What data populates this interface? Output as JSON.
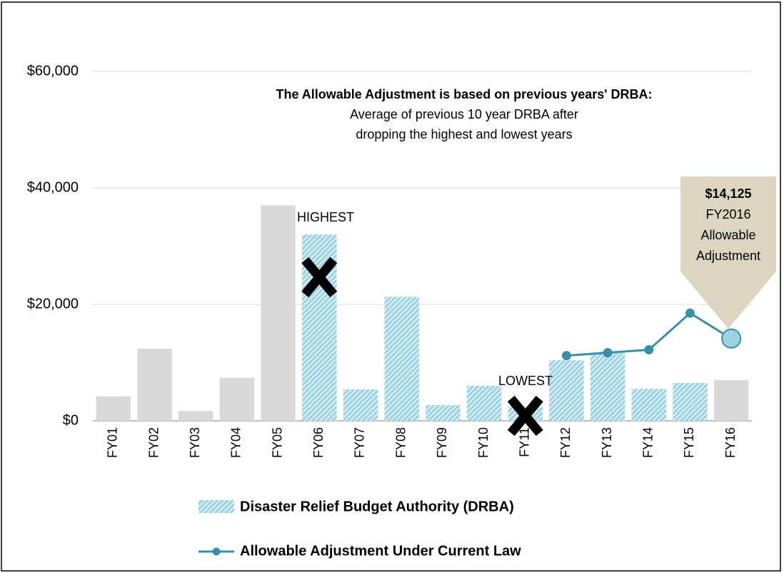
{
  "chart_data": {
    "type": "bar",
    "categories": [
      "FY01",
      "FY02",
      "FY03",
      "FY04",
      "FY05",
      "FY06",
      "FY07",
      "FY08",
      "FY09",
      "FY10",
      "FY11",
      "FY12",
      "FY13",
      "FY14",
      "FY15",
      "FY16"
    ],
    "series": [
      {
        "name": "Disaster Relief Budget Authority (DRBA)",
        "type": "bar",
        "color": "#7ec3d6",
        "bar_colors": [
          "#d9d9d9",
          "#d9d9d9",
          "#d9d9d9",
          "#d9d9d9",
          "#d9d9d9",
          "#7ec3d6",
          "#7ec3d6",
          "#7ec3d6",
          "#7ec3d6",
          "#7ec3d6",
          "#7ec3d6",
          "#7ec3d6",
          "#7ec3d6",
          "#7ec3d6",
          "#7ec3d6",
          "#d9d9d9"
        ],
        "values": [
          4200,
          12400,
          1700,
          7400,
          37000,
          32000,
          5400,
          21300,
          2700,
          6000,
          2500,
          10400,
          11700,
          5500,
          6500,
          7000
        ]
      },
      {
        "name": "Allowable Adjustment Under Current Law",
        "type": "line",
        "color": "#3a8fa8",
        "values": [
          null,
          null,
          null,
          null,
          null,
          null,
          null,
          null,
          null,
          null,
          null,
          11200,
          11700,
          12200,
          18500,
          14125
        ]
      }
    ],
    "ylim": [
      0,
      60000
    ],
    "yticks": [
      {
        "value": 0,
        "label": "$0"
      },
      {
        "value": 20000,
        "label": "$20,000"
      },
      {
        "value": 40000,
        "label": "$40,000"
      },
      {
        "value": 60000,
        "label": "$60,000"
      }
    ],
    "grid": true,
    "annotations": {
      "header": "The Allowable Adjustment is based on previous years' DRBA:",
      "line1": "Average of previous  10 year DRBA after",
      "line2": "dropping the highest and lowest years",
      "highest": "HIGHEST",
      "lowest": "LOWEST",
      "callout_value": "$14,125",
      "callout_1": "FY2016",
      "callout_2": "Allowable",
      "callout_3": "Adjustment"
    }
  }
}
